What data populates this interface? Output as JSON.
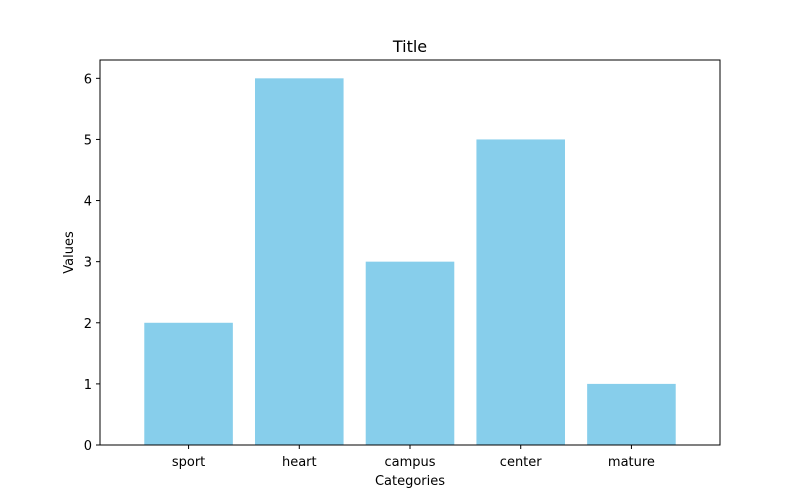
{
  "chart_data": {
    "type": "bar",
    "title": "Title",
    "xlabel": "Categories",
    "ylabel": "Values",
    "categories": [
      "sport",
      "heart",
      "campus",
      "center",
      "mature"
    ],
    "values": [
      2,
      6,
      3,
      5,
      1
    ],
    "yticks": [
      "0",
      "1",
      "2",
      "3",
      "4",
      "5",
      "6"
    ],
    "ylim": [
      0,
      6.3
    ],
    "grid": false,
    "bar_color": "#87CEEB"
  }
}
